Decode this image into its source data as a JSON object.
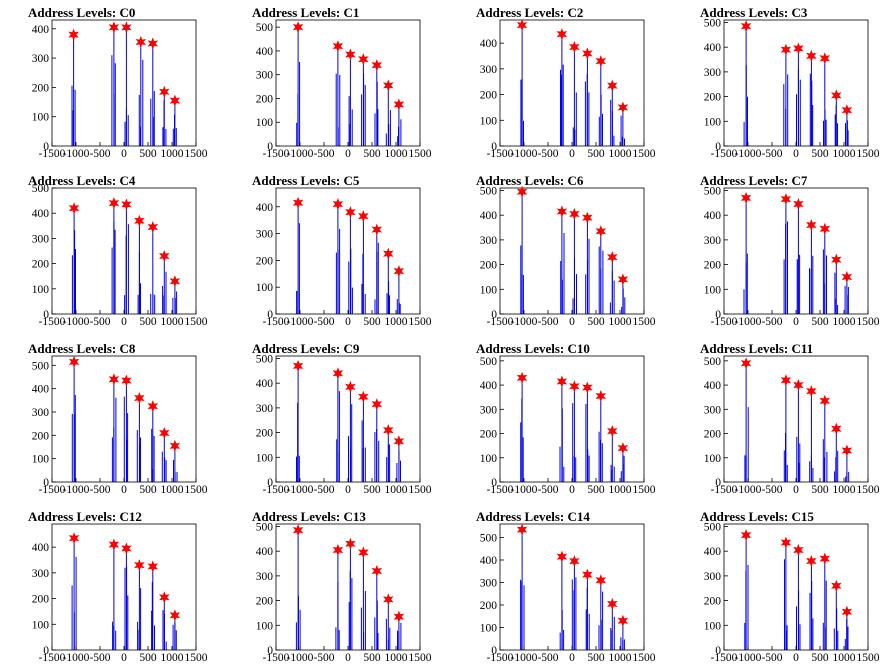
{
  "chart_data": [
    {
      "type": "bar",
      "title": "Address Levels: C0",
      "xlim": [
        -1500,
        1500
      ],
      "ylim": [
        0,
        430
      ],
      "yticks": [
        0,
        100,
        200,
        300,
        400
      ],
      "xticks": [
        -1500,
        -1000,
        -500,
        0,
        500,
        1000,
        1500
      ],
      "peaks": [
        {
          "x": -1050,
          "y": 380
        },
        {
          "x": -210,
          "y": 405
        },
        {
          "x": 50,
          "y": 405
        },
        {
          "x": 350,
          "y": 355
        },
        {
          "x": 600,
          "y": 350
        },
        {
          "x": 840,
          "y": 185
        },
        {
          "x": 1060,
          "y": 155
        }
      ]
    },
    {
      "type": "bar",
      "title": "Address Levels: C1",
      "xlim": [
        -1500,
        1500
      ],
      "ylim": [
        0,
        530
      ],
      "yticks": [
        0,
        100,
        200,
        300,
        400,
        500
      ],
      "xticks": [
        -1500,
        -1000,
        -500,
        0,
        500,
        1000,
        1500
      ],
      "peaks": [
        {
          "x": -1040,
          "y": 500
        },
        {
          "x": -210,
          "y": 420
        },
        {
          "x": 50,
          "y": 385
        },
        {
          "x": 320,
          "y": 365
        },
        {
          "x": 600,
          "y": 340
        },
        {
          "x": 840,
          "y": 255
        },
        {
          "x": 1060,
          "y": 175
        }
      ]
    },
    {
      "type": "bar",
      "title": "Address Levels: C2",
      "xlim": [
        -1500,
        1500
      ],
      "ylim": [
        0,
        490
      ],
      "yticks": [
        0,
        100,
        200,
        300,
        400
      ],
      "xticks": [
        -1500,
        -1000,
        -500,
        0,
        500,
        1000,
        1500
      ],
      "peaks": [
        {
          "x": -1040,
          "y": 470
        },
        {
          "x": -210,
          "y": 435
        },
        {
          "x": 50,
          "y": 385
        },
        {
          "x": 320,
          "y": 360
        },
        {
          "x": 600,
          "y": 330
        },
        {
          "x": 840,
          "y": 235
        },
        {
          "x": 1060,
          "y": 150
        }
      ]
    },
    {
      "type": "bar",
      "title": "Address Levels: C3",
      "xlim": [
        -1500,
        1500
      ],
      "ylim": [
        0,
        510
      ],
      "yticks": [
        0,
        100,
        200,
        300,
        400,
        500
      ],
      "xticks": [
        -1500,
        -1000,
        -500,
        0,
        500,
        1000,
        1500
      ],
      "peaks": [
        {
          "x": -1040,
          "y": 485
        },
        {
          "x": -210,
          "y": 390
        },
        {
          "x": 50,
          "y": 395
        },
        {
          "x": 320,
          "y": 365
        },
        {
          "x": 600,
          "y": 355
        },
        {
          "x": 840,
          "y": 205
        },
        {
          "x": 1060,
          "y": 145
        }
      ]
    },
    {
      "type": "bar",
      "title": "Address Levels: C4",
      "xlim": [
        -1500,
        1500
      ],
      "ylim": [
        0,
        500
      ],
      "yticks": [
        0,
        100,
        200,
        300,
        400,
        500
      ],
      "xticks": [
        -1500,
        -1000,
        -500,
        0,
        500,
        1000,
        1500
      ],
      "peaks": [
        {
          "x": -1040,
          "y": 420
        },
        {
          "x": -210,
          "y": 440
        },
        {
          "x": 50,
          "y": 435
        },
        {
          "x": 320,
          "y": 370
        },
        {
          "x": 600,
          "y": 345
        },
        {
          "x": 840,
          "y": 230
        },
        {
          "x": 1060,
          "y": 130
        }
      ]
    },
    {
      "type": "bar",
      "title": "Address Levels: C5",
      "xlim": [
        -1500,
        1500
      ],
      "ylim": [
        0,
        470
      ],
      "yticks": [
        0,
        100,
        200,
        300,
        400
      ],
      "xticks": [
        -1500,
        -1000,
        -500,
        0,
        500,
        1000,
        1500
      ],
      "peaks": [
        {
          "x": -1040,
          "y": 415
        },
        {
          "x": -210,
          "y": 410
        },
        {
          "x": 50,
          "y": 380
        },
        {
          "x": 320,
          "y": 365
        },
        {
          "x": 600,
          "y": 315
        },
        {
          "x": 840,
          "y": 225
        },
        {
          "x": 1060,
          "y": 160
        }
      ]
    },
    {
      "type": "bar",
      "title": "Address Levels: C6",
      "xlim": [
        -1500,
        1500
      ],
      "ylim": [
        0,
        510
      ],
      "yticks": [
        0,
        100,
        200,
        300,
        400,
        500
      ],
      "xticks": [
        -1500,
        -1000,
        -500,
        0,
        500,
        1000,
        1500
      ],
      "peaks": [
        {
          "x": -1040,
          "y": 495
        },
        {
          "x": -210,
          "y": 415
        },
        {
          "x": 50,
          "y": 405
        },
        {
          "x": 320,
          "y": 390
        },
        {
          "x": 600,
          "y": 335
        },
        {
          "x": 840,
          "y": 230
        },
        {
          "x": 1060,
          "y": 140
        }
      ]
    },
    {
      "type": "bar",
      "title": "Address Levels: C7",
      "xlim": [
        -1500,
        1500
      ],
      "ylim": [
        0,
        510
      ],
      "yticks": [
        0,
        100,
        200,
        300,
        400,
        500
      ],
      "xticks": [
        -1500,
        -1000,
        -500,
        0,
        500,
        1000,
        1500
      ],
      "peaks": [
        {
          "x": -1040,
          "y": 470
        },
        {
          "x": -210,
          "y": 465
        },
        {
          "x": 50,
          "y": 445
        },
        {
          "x": 320,
          "y": 360
        },
        {
          "x": 600,
          "y": 345
        },
        {
          "x": 840,
          "y": 220
        },
        {
          "x": 1060,
          "y": 150
        }
      ]
    },
    {
      "type": "bar",
      "title": "Address Levels: C8",
      "xlim": [
        -1500,
        1500
      ],
      "ylim": [
        0,
        540
      ],
      "yticks": [
        0,
        100,
        200,
        300,
        400,
        500
      ],
      "xticks": [
        -1500,
        -1000,
        -500,
        0,
        500,
        1000,
        1500
      ],
      "peaks": [
        {
          "x": -1040,
          "y": 515
        },
        {
          "x": -210,
          "y": 440
        },
        {
          "x": 50,
          "y": 435
        },
        {
          "x": 320,
          "y": 360
        },
        {
          "x": 600,
          "y": 325
        },
        {
          "x": 840,
          "y": 210
        },
        {
          "x": 1060,
          "y": 155
        }
      ]
    },
    {
      "type": "bar",
      "title": "Address Levels: C9",
      "xlim": [
        -1500,
        1500
      ],
      "ylim": [
        0,
        510
      ],
      "yticks": [
        0,
        100,
        200,
        300,
        400,
        500
      ],
      "xticks": [
        -1500,
        -1000,
        -500,
        0,
        500,
        1000,
        1500
      ],
      "peaks": [
        {
          "x": -1040,
          "y": 470
        },
        {
          "x": -210,
          "y": 440
        },
        {
          "x": 50,
          "y": 385
        },
        {
          "x": 320,
          "y": 345
        },
        {
          "x": 600,
          "y": 315
        },
        {
          "x": 840,
          "y": 210
        },
        {
          "x": 1060,
          "y": 165
        }
      ]
    },
    {
      "type": "bar",
      "title": "Address Levels: C10",
      "xlim": [
        -1500,
        1500
      ],
      "ylim": [
        0,
        520
      ],
      "yticks": [
        0,
        100,
        200,
        300,
        400,
        500
      ],
      "xticks": [
        -1500,
        -1000,
        -500,
        0,
        500,
        1000,
        1500
      ],
      "peaks": [
        {
          "x": -1040,
          "y": 430
        },
        {
          "x": -210,
          "y": 415
        },
        {
          "x": 50,
          "y": 395
        },
        {
          "x": 320,
          "y": 390
        },
        {
          "x": 600,
          "y": 355
        },
        {
          "x": 840,
          "y": 210
        },
        {
          "x": 1060,
          "y": 140
        }
      ]
    },
    {
      "type": "bar",
      "title": "Address Levels: C11",
      "xlim": [
        -1500,
        1500
      ],
      "ylim": [
        0,
        520
      ],
      "yticks": [
        0,
        100,
        200,
        300,
        400,
        500
      ],
      "xticks": [
        -1500,
        -1000,
        -500,
        0,
        500,
        1000,
        1500
      ],
      "peaks": [
        {
          "x": -1040,
          "y": 490
        },
        {
          "x": -210,
          "y": 420
        },
        {
          "x": 50,
          "y": 400
        },
        {
          "x": 320,
          "y": 375
        },
        {
          "x": 600,
          "y": 335
        },
        {
          "x": 840,
          "y": 220
        },
        {
          "x": 1060,
          "y": 130
        }
      ]
    },
    {
      "type": "bar",
      "title": "Address Levels: C12",
      "xlim": [
        -1500,
        1500
      ],
      "ylim": [
        0,
        490
      ],
      "yticks": [
        0,
        100,
        200,
        300,
        400
      ],
      "xticks": [
        -1500,
        -1000,
        -500,
        0,
        500,
        1000,
        1500
      ],
      "peaks": [
        {
          "x": -1040,
          "y": 435
        },
        {
          "x": -210,
          "y": 410
        },
        {
          "x": 50,
          "y": 395
        },
        {
          "x": 320,
          "y": 330
        },
        {
          "x": 600,
          "y": 325
        },
        {
          "x": 840,
          "y": 205
        },
        {
          "x": 1060,
          "y": 135
        }
      ]
    },
    {
      "type": "bar",
      "title": "Address Levels: C13",
      "xlim": [
        -1500,
        1500
      ],
      "ylim": [
        0,
        510
      ],
      "yticks": [
        0,
        100,
        200,
        300,
        400,
        500
      ],
      "xticks": [
        -1500,
        -1000,
        -500,
        0,
        500,
        1000,
        1500
      ],
      "peaks": [
        {
          "x": -1040,
          "y": 485
        },
        {
          "x": -210,
          "y": 405
        },
        {
          "x": 50,
          "y": 430
        },
        {
          "x": 320,
          "y": 395
        },
        {
          "x": 600,
          "y": 320
        },
        {
          "x": 840,
          "y": 205
        },
        {
          "x": 1060,
          "y": 135
        }
      ]
    },
    {
      "type": "bar",
      "title": "Address Levels: C14",
      "xlim": [
        -1500,
        1500
      ],
      "ylim": [
        0,
        560
      ],
      "yticks": [
        0,
        100,
        200,
        300,
        400,
        500
      ],
      "xticks": [
        -1500,
        -1000,
        -500,
        0,
        500,
        1000,
        1500
      ],
      "peaks": [
        {
          "x": -1040,
          "y": 535
        },
        {
          "x": -210,
          "y": 415
        },
        {
          "x": 50,
          "y": 395
        },
        {
          "x": 320,
          "y": 335
        },
        {
          "x": 600,
          "y": 310
        },
        {
          "x": 840,
          "y": 205
        },
        {
          "x": 1060,
          "y": 130
        }
      ]
    },
    {
      "type": "bar",
      "title": "Address Levels: C15",
      "xlim": [
        -1500,
        1500
      ],
      "ylim": [
        0,
        510
      ],
      "yticks": [
        0,
        100,
        200,
        300,
        400,
        500
      ],
      "xticks": [
        -1500,
        -1000,
        -500,
        0,
        500,
        1000,
        1500
      ],
      "peaks": [
        {
          "x": -1040,
          "y": 465
        },
        {
          "x": -210,
          "y": 435
        },
        {
          "x": 50,
          "y": 405
        },
        {
          "x": 320,
          "y": 360
        },
        {
          "x": 600,
          "y": 370
        },
        {
          "x": 840,
          "y": 260
        },
        {
          "x": 1060,
          "y": 155
        }
      ]
    }
  ],
  "colors": {
    "histogram": "#0000ee",
    "marker": "#ff0000",
    "axes": "#000000"
  }
}
